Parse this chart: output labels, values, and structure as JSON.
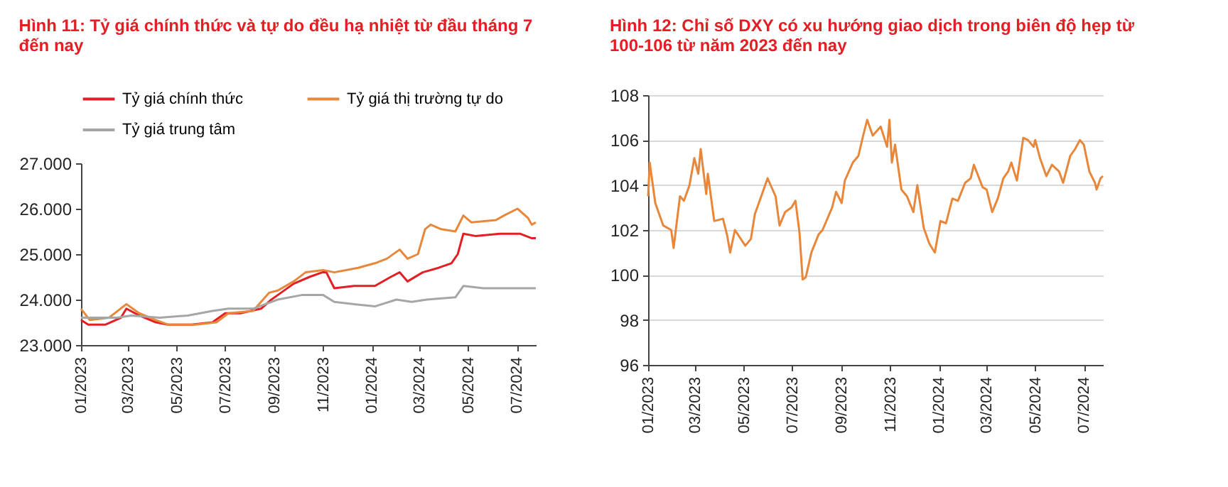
{
  "chart_data": [
    {
      "type": "line",
      "title": "Hình 11: Tỷ giá chính thức và tự do đều hạ nhiệt từ đầu tháng 7 đến nay",
      "legend": "top",
      "grid": false,
      "xlim": [
        "2023-01-01",
        "2024-07-25"
      ],
      "xticks": [
        {
          "value": "2023-01-01",
          "label": "01/2023"
        },
        {
          "value": "2023-03-01",
          "label": "03/2023"
        },
        {
          "value": "2023-05-01",
          "label": "05/2023"
        },
        {
          "value": "2023-07-01",
          "label": "07/2023"
        },
        {
          "value": "2023-09-01",
          "label": "09/2023"
        },
        {
          "value": "2023-11-01",
          "label": "11/2023"
        },
        {
          "value": "2024-01-01",
          "label": "01/2024"
        },
        {
          "value": "2024-03-01",
          "label": "03/2024"
        },
        {
          "value": "2024-05-01",
          "label": "05/2024"
        },
        {
          "value": "2024-07-01",
          "label": "07/2024"
        }
      ],
      "ylim": [
        23000,
        27000
      ],
      "yticks": [
        {
          "value": 23000,
          "label": "23.000"
        },
        {
          "value": 24000,
          "label": "24.000"
        },
        {
          "value": 25000,
          "label": "25.000"
        },
        {
          "value": 26000,
          "label": "26.000"
        },
        {
          "value": 27000,
          "label": "27.000"
        }
      ],
      "series": [
        {
          "name": "Tỷ giá chính thức",
          "color": "#e31e24",
          "x": [
            "2023-01-01",
            "2023-01-10",
            "2023-02-01",
            "2023-02-20",
            "2023-02-27",
            "2023-03-15",
            "2023-04-05",
            "2023-04-20",
            "2023-05-20",
            "2023-06-15",
            "2023-07-01",
            "2023-07-20",
            "2023-08-15",
            "2023-08-28",
            "2023-09-05",
            "2023-09-25",
            "2023-10-15",
            "2023-10-31",
            "2023-11-05",
            "2023-11-15",
            "2023-12-10",
            "2024-01-05",
            "2024-01-25",
            "2024-02-05",
            "2024-02-15",
            "2024-03-05",
            "2024-03-25",
            "2024-04-10",
            "2024-04-18",
            "2024-04-25",
            "2024-05-10",
            "2024-06-10",
            "2024-07-05",
            "2024-07-20",
            "2024-07-25"
          ],
          "values": [
            23550,
            23450,
            23450,
            23600,
            23800,
            23650,
            23500,
            23450,
            23450,
            23500,
            23700,
            23700,
            23800,
            24000,
            24100,
            24350,
            24500,
            24600,
            24600,
            24250,
            24300,
            24300,
            24500,
            24600,
            24400,
            24600,
            24700,
            24800,
            25000,
            25450,
            25400,
            25450,
            25450,
            25350,
            25350
          ]
        },
        {
          "name": "Tỷ giá thị trường tự do",
          "color": "#e8873a",
          "x": [
            "2023-01-01",
            "2023-01-12",
            "2023-02-05",
            "2023-02-27",
            "2023-03-15",
            "2023-04-05",
            "2023-04-20",
            "2023-05-25",
            "2023-06-20",
            "2023-07-05",
            "2023-08-05",
            "2023-08-25",
            "2023-09-05",
            "2023-09-25",
            "2023-10-10",
            "2023-11-01",
            "2023-11-15",
            "2023-12-15",
            "2024-01-05",
            "2024-01-20",
            "2024-02-05",
            "2024-02-15",
            "2024-02-28",
            "2024-03-08",
            "2024-03-15",
            "2024-03-28",
            "2024-04-15",
            "2024-04-25",
            "2024-05-05",
            "2024-06-05",
            "2024-06-15",
            "2024-07-02",
            "2024-07-15",
            "2024-07-20",
            "2024-07-25"
          ],
          "values": [
            23800,
            23550,
            23600,
            23900,
            23700,
            23550,
            23450,
            23450,
            23500,
            23700,
            23750,
            24150,
            24200,
            24400,
            24600,
            24650,
            24600,
            24700,
            24800,
            24900,
            25100,
            24900,
            25000,
            25550,
            25650,
            25550,
            25500,
            25850,
            25700,
            25750,
            25850,
            26000,
            25800,
            25650,
            25700
          ]
        },
        {
          "name": "Tỷ giá trung tâm",
          "color": "#a6a6a6",
          "x": [
            "2023-01-01",
            "2023-02-15",
            "2023-03-05",
            "2023-04-10",
            "2023-05-15",
            "2023-06-15",
            "2023-07-05",
            "2023-08-05",
            "2023-09-05",
            "2023-10-05",
            "2023-11-01",
            "2023-11-15",
            "2023-12-10",
            "2024-01-05",
            "2024-02-01",
            "2024-02-20",
            "2024-03-10",
            "2024-04-15",
            "2024-04-25",
            "2024-05-20",
            "2024-07-25"
          ],
          "values": [
            23600,
            23600,
            23650,
            23600,
            23650,
            23750,
            23800,
            23800,
            24000,
            24100,
            24100,
            23950,
            23900,
            23850,
            24000,
            23950,
            24000,
            24050,
            24300,
            24250,
            24250
          ]
        }
      ]
    },
    {
      "type": "line",
      "title": "Hình 12: Chỉ số DXY có xu hướng giao dịch trong biên độ hẹp từ 100-106 từ năm 2023 đến nay",
      "grid": "y",
      "xlim": [
        "2023-01-01",
        "2024-07-25"
      ],
      "xticks": [
        {
          "value": "2023-01-01",
          "label": "01/2023"
        },
        {
          "value": "2023-03-01",
          "label": "03/2023"
        },
        {
          "value": "2023-05-01",
          "label": "05/2023"
        },
        {
          "value": "2023-07-01",
          "label": "07/2023"
        },
        {
          "value": "2023-09-01",
          "label": "09/2023"
        },
        {
          "value": "2023-11-01",
          "label": "11/2023"
        },
        {
          "value": "2024-01-01",
          "label": "01/2024"
        },
        {
          "value": "2024-03-01",
          "label": "03/2024"
        },
        {
          "value": "2024-05-01",
          "label": "05/2024"
        },
        {
          "value": "2024-07-01",
          "label": "07/2024"
        }
      ],
      "ylim": [
        96,
        108
      ],
      "yticks": [
        96,
        98,
        100,
        102,
        104,
        106,
        108
      ],
      "series": [
        {
          "color": "#e8873a",
          "x": [
            "2023-01-01",
            "2023-01-03",
            "2023-01-10",
            "2023-01-20",
            "2023-01-30",
            "2023-02-02",
            "2023-02-10",
            "2023-02-15",
            "2023-02-22",
            "2023-02-28",
            "2023-03-05",
            "2023-03-08",
            "2023-03-15",
            "2023-03-17",
            "2023-03-25",
            "2023-04-05",
            "2023-04-10",
            "2023-04-14",
            "2023-04-20",
            "2023-05-03",
            "2023-05-10",
            "2023-05-15",
            "2023-05-25",
            "2023-05-31",
            "2023-06-10",
            "2023-06-15",
            "2023-06-22",
            "2023-06-30",
            "2023-07-05",
            "2023-07-10",
            "2023-07-14",
            "2023-07-18",
            "2023-07-25",
            "2023-08-03",
            "2023-08-08",
            "2023-08-20",
            "2023-08-25",
            "2023-09-01",
            "2023-09-05",
            "2023-09-15",
            "2023-09-22",
            "2023-09-28",
            "2023-10-03",
            "2023-10-10",
            "2023-10-20",
            "2023-10-28",
            "2023-10-31",
            "2023-11-03",
            "2023-11-07",
            "2023-11-15",
            "2023-11-22",
            "2023-11-30",
            "2023-12-05",
            "2023-12-13",
            "2023-12-20",
            "2023-12-27",
            "2024-01-03",
            "2024-01-10",
            "2024-01-18",
            "2024-01-25",
            "2024-02-03",
            "2024-02-10",
            "2024-02-14",
            "2024-02-25",
            "2024-03-01",
            "2024-03-08",
            "2024-03-15",
            "2024-03-22",
            "2024-03-28",
            "2024-04-01",
            "2024-04-08",
            "2024-04-16",
            "2024-04-22",
            "2024-04-29",
            "2024-05-01",
            "2024-05-07",
            "2024-05-15",
            "2024-05-22",
            "2024-05-31",
            "2024-06-05",
            "2024-06-14",
            "2024-06-20",
            "2024-06-26",
            "2024-07-01",
            "2024-07-08",
            "2024-07-15",
            "2024-07-17",
            "2024-07-22",
            "2024-07-25"
          ],
          "values": [
            103.5,
            105.0,
            103.2,
            102.2,
            102.0,
            101.2,
            103.5,
            103.3,
            104.0,
            105.2,
            104.5,
            105.6,
            103.6,
            104.5,
            102.4,
            102.5,
            101.8,
            101.0,
            102.0,
            101.3,
            101.6,
            102.7,
            103.7,
            104.3,
            103.5,
            102.2,
            102.8,
            103.0,
            103.3,
            101.9,
            99.8,
            99.9,
            101.0,
            101.8,
            102.0,
            103.0,
            103.7,
            103.2,
            104.2,
            105.0,
            105.3,
            106.2,
            106.9,
            106.2,
            106.6,
            105.7,
            106.9,
            105.0,
            105.8,
            103.8,
            103.5,
            102.8,
            104.0,
            102.1,
            101.4,
            101.0,
            102.4,
            102.3,
            103.4,
            103.3,
            104.1,
            104.3,
            104.9,
            103.9,
            103.8,
            102.8,
            103.4,
            104.3,
            104.6,
            105.0,
            104.2,
            106.1,
            106.0,
            105.7,
            106.0,
            105.2,
            104.4,
            104.9,
            104.6,
            104.1,
            105.3,
            105.6,
            106.0,
            105.8,
            104.6,
            104.1,
            103.8,
            104.3,
            104.4
          ]
        }
      ]
    }
  ]
}
